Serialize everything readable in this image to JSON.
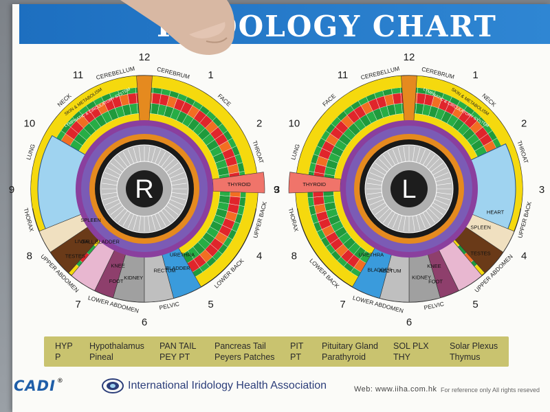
{
  "header": {
    "title": "IRIDOLOGY CHART"
  },
  "right_iris": {
    "letter": "R",
    "clock_numbers": [
      "12",
      "1",
      "2",
      "3",
      "4",
      "5",
      "6",
      "7",
      "8",
      "9",
      "10",
      "11"
    ],
    "outer_labels": [
      "CEREBELLUM",
      "CEREBRUM",
      "FACE",
      "NECK",
      "THROAT",
      "LUNG",
      "UPPER BACK",
      "LOWER BACK",
      "PELVIC",
      "LOWER ABDOMEN",
      "UPPER ABDOMEN",
      "THORAX"
    ],
    "sector_labels": [
      "THYROID",
      "KIDNEY",
      "SPLEEN",
      "LIVER",
      "GALL BLADDER",
      "TESTES",
      "FOOT",
      "KNEE",
      "URETHRA",
      "BLADDER",
      "RECTUM",
      "GASTRIC ZONE",
      "INTESTINE",
      "DECUM"
    ],
    "ring_labels": [
      "SKIN & METABOLISM",
      "LYMPHATIC & CIRCULATORY SYSTEM"
    ]
  },
  "left_iris": {
    "letter": "L",
    "clock_numbers": [
      "12",
      "1",
      "2",
      "3",
      "4",
      "5",
      "6",
      "7",
      "8",
      "9",
      "10",
      "11"
    ],
    "outer_labels": [
      "CEREBRUM",
      "CEREBELLUM",
      "NECK",
      "FACE",
      "LUNG",
      "THROAT",
      "THORAX",
      "UPPER BACK",
      "UPPER ABDOMEN",
      "LOWER BACK",
      "LOWER ABDOMEN",
      "PELVIC"
    ],
    "sector_labels": [
      "THYROID",
      "KIDNEY",
      "SPLEEN",
      "HEART",
      "TESTES",
      "FOOT",
      "KNEE",
      "URETHRA",
      "BLADDER",
      "RECTUM",
      "GASTRIC ZONE",
      "INTESTINE"
    ],
    "ring_labels": [
      "SKIN & METABOLISM",
      "LYMPHATIC & CIRCULATORY SYSTEM"
    ]
  },
  "legend": [
    {
      "abbr": "HYP",
      "full": "Hypothalamus"
    },
    {
      "abbr": "P",
      "full": "Pineal"
    },
    {
      "abbr": "PAN TAIL",
      "full": "Pancreas Tail"
    },
    {
      "abbr": "PEY PT",
      "full": "Peyers Patches"
    },
    {
      "abbr": "PIT",
      "full": "Pituitary Gland"
    },
    {
      "abbr": "PT",
      "full": "Parathyroid"
    },
    {
      "abbr": "SOL PLX",
      "full": "Solar Plexus"
    },
    {
      "abbr": "THY",
      "full": "Thymus"
    }
  ],
  "footer": {
    "logo": "CADI",
    "logo_mark": "®",
    "association": "International Iridology Health Association",
    "website": "Web: www.iiha.com.hk",
    "reference": "For reference only All rights reseved"
  },
  "colors": {
    "header_blue": "#2a7dcc",
    "outer_yellow": "#f5d90e",
    "green": "#1f9a3c",
    "red": "#e0252b",
    "purple": "#8a3f9e",
    "light_blue": "#9fd3f0",
    "orange": "#e58a1f",
    "gray": "#a9a9a9",
    "legend_bg": "#c9c36f"
  }
}
